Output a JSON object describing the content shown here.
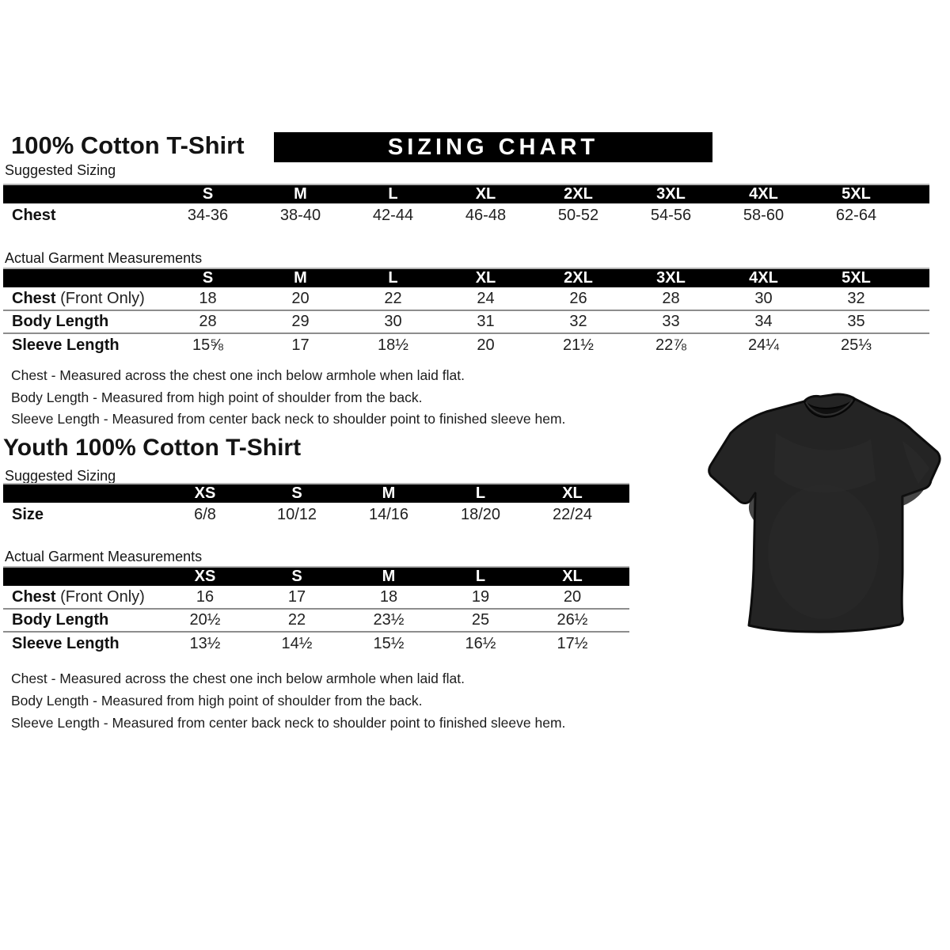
{
  "page": {
    "title": "100% Cotton T-Shirt",
    "banner": "SIZING CHART"
  },
  "adult": {
    "suggested_label": "Suggested Sizing",
    "suggested": {
      "columns": [
        "S",
        "M",
        "L",
        "XL",
        "2XL",
        "3XL",
        "4XL",
        "5XL"
      ],
      "rows": [
        {
          "label": "Chest",
          "values": [
            "34-36",
            "38-40",
            "42-44",
            "46-48",
            "50-52",
            "54-56",
            "58-60",
            "62-64"
          ]
        }
      ]
    },
    "actual_label": "Actual Garment Measurements",
    "actual": {
      "columns": [
        "S",
        "M",
        "L",
        "XL",
        "2XL",
        "3XL",
        "4XL",
        "5XL"
      ],
      "rows": [
        {
          "label": "Chest",
          "label_suffix": " (Front Only)",
          "values": [
            "18",
            "20",
            "22",
            "24",
            "26",
            "28",
            "30",
            "32"
          ]
        },
        {
          "label": "Body Length",
          "values": [
            "28",
            "29",
            "30",
            "31",
            "32",
            "33",
            "34",
            "35"
          ]
        },
        {
          "label": "Sleeve Length",
          "values": [
            "15⅝",
            "17",
            "18½",
            "20",
            "21½",
            "22⅞",
            "24¼",
            "25⅓"
          ]
        }
      ]
    },
    "notes": [
      "Chest - Measured across the chest one inch below armhole when laid flat.",
      "Body Length - Measured from high point of shoulder from the back.",
      "Sleeve Length - Measured from center back neck to shoulder point to finished sleeve hem."
    ]
  },
  "youth": {
    "title": "Youth 100% Cotton T-Shirt",
    "suggested_label": "Suggested Sizing",
    "suggested": {
      "columns": [
        "XS",
        "S",
        "M",
        "L",
        "XL"
      ],
      "rows": [
        {
          "label": "Size",
          "values": [
            "6/8",
            "10/12",
            "14/16",
            "18/20",
            "22/24"
          ]
        }
      ]
    },
    "actual_label": "Actual Garment Measurements",
    "actual": {
      "columns": [
        "XS",
        "S",
        "M",
        "L",
        "XL"
      ],
      "rows": [
        {
          "label": "Chest",
          "label_suffix": " (Front Only)",
          "values": [
            "16",
            "17",
            "18",
            "19",
            "20"
          ]
        },
        {
          "label": "Body Length",
          "values": [
            "20½",
            "22",
            "23½",
            "25",
            "26½"
          ]
        },
        {
          "label": "Sleeve Length",
          "values": [
            "13½",
            "14½",
            "15½",
            "16½",
            "17½"
          ]
        }
      ]
    },
    "notes": [
      "Chest - Measured across the chest one inch below armhole when laid flat.",
      "Body Length - Measured from high point of shoulder from the back.",
      "Sleeve Length - Measured from center back neck to shoulder point to finished sleeve hem."
    ]
  },
  "image": {
    "description": "black cotton t-shirt flat lay photo"
  },
  "colors": {
    "header_bar_bg": "#000000",
    "header_bar_text": "#ffffff",
    "row_rule": "#8d8d8d",
    "body_text": "#1a1a1a",
    "shirt_fill": "#242424"
  }
}
